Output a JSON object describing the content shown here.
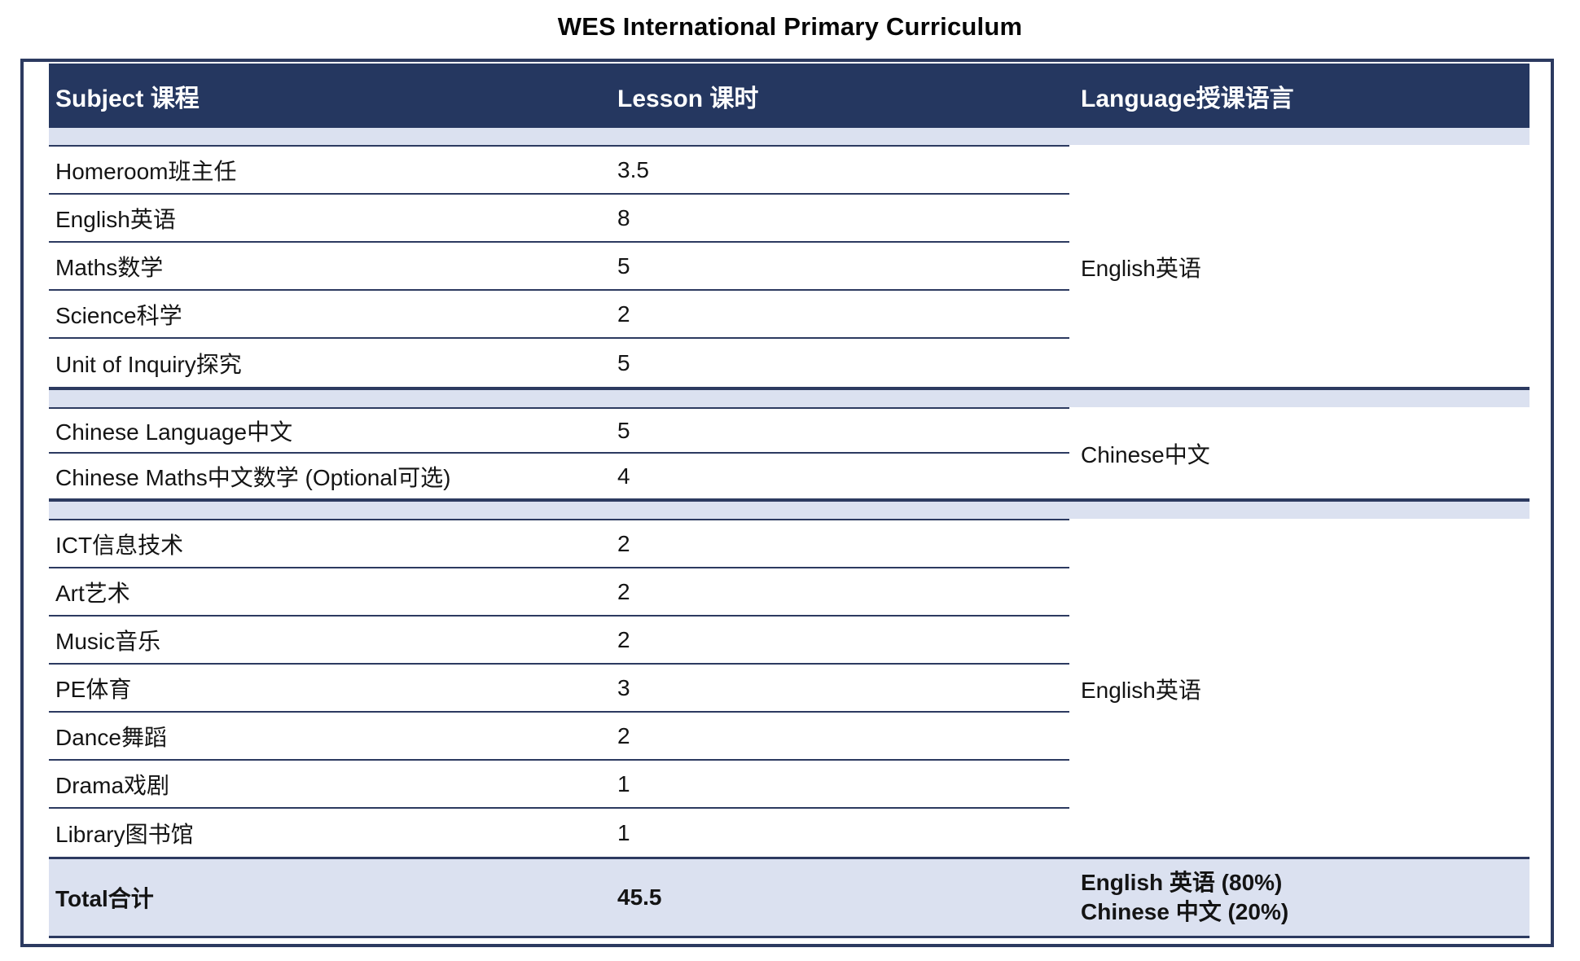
{
  "title": "WES International Primary Curriculum",
  "table": {
    "headers": {
      "subject": "Subject 课程",
      "lesson": "Lesson 课时",
      "language": "Language授课语言"
    },
    "groups": [
      {
        "language": "English英语",
        "rows": [
          {
            "subject": "Homeroom班主任",
            "lesson": "3.5"
          },
          {
            "subject": "English英语",
            "lesson": "8"
          },
          {
            "subject": "Maths数学",
            "lesson": "5"
          },
          {
            "subject": "Science科学",
            "lesson": "2"
          },
          {
            "subject": "Unit of Inquiry探究",
            "lesson": "5"
          }
        ]
      },
      {
        "language": "Chinese中文",
        "rows": [
          {
            "subject": "Chinese Language中文",
            "lesson": "5"
          },
          {
            "subject": "Chinese Maths中文数学 (Optional可选)",
            "lesson": "4"
          }
        ]
      },
      {
        "language": "English英语",
        "rows": [
          {
            "subject": "ICT信息技术",
            "lesson": "2"
          },
          {
            "subject": "Art艺术",
            "lesson": "2"
          },
          {
            "subject": "Music音乐",
            "lesson": "2"
          },
          {
            "subject": "PE体育",
            "lesson": "3"
          },
          {
            "subject": "Dance舞蹈",
            "lesson": "2"
          },
          {
            "subject": "Drama戏剧",
            "lesson": "1"
          },
          {
            "subject": "Library图书馆",
            "lesson": "1"
          }
        ]
      }
    ],
    "total": {
      "label": "Total合计",
      "lesson": "45.5",
      "language_lines": [
        "English 英语 (80%)",
        "Chinese 中文 (20%)"
      ]
    }
  },
  "colors": {
    "header_navy": "#253760",
    "line_navy": "#2c3a60",
    "band_light_blue": "#dbe1f0",
    "header_text": "#ffffff",
    "body_text": "#141414"
  }
}
